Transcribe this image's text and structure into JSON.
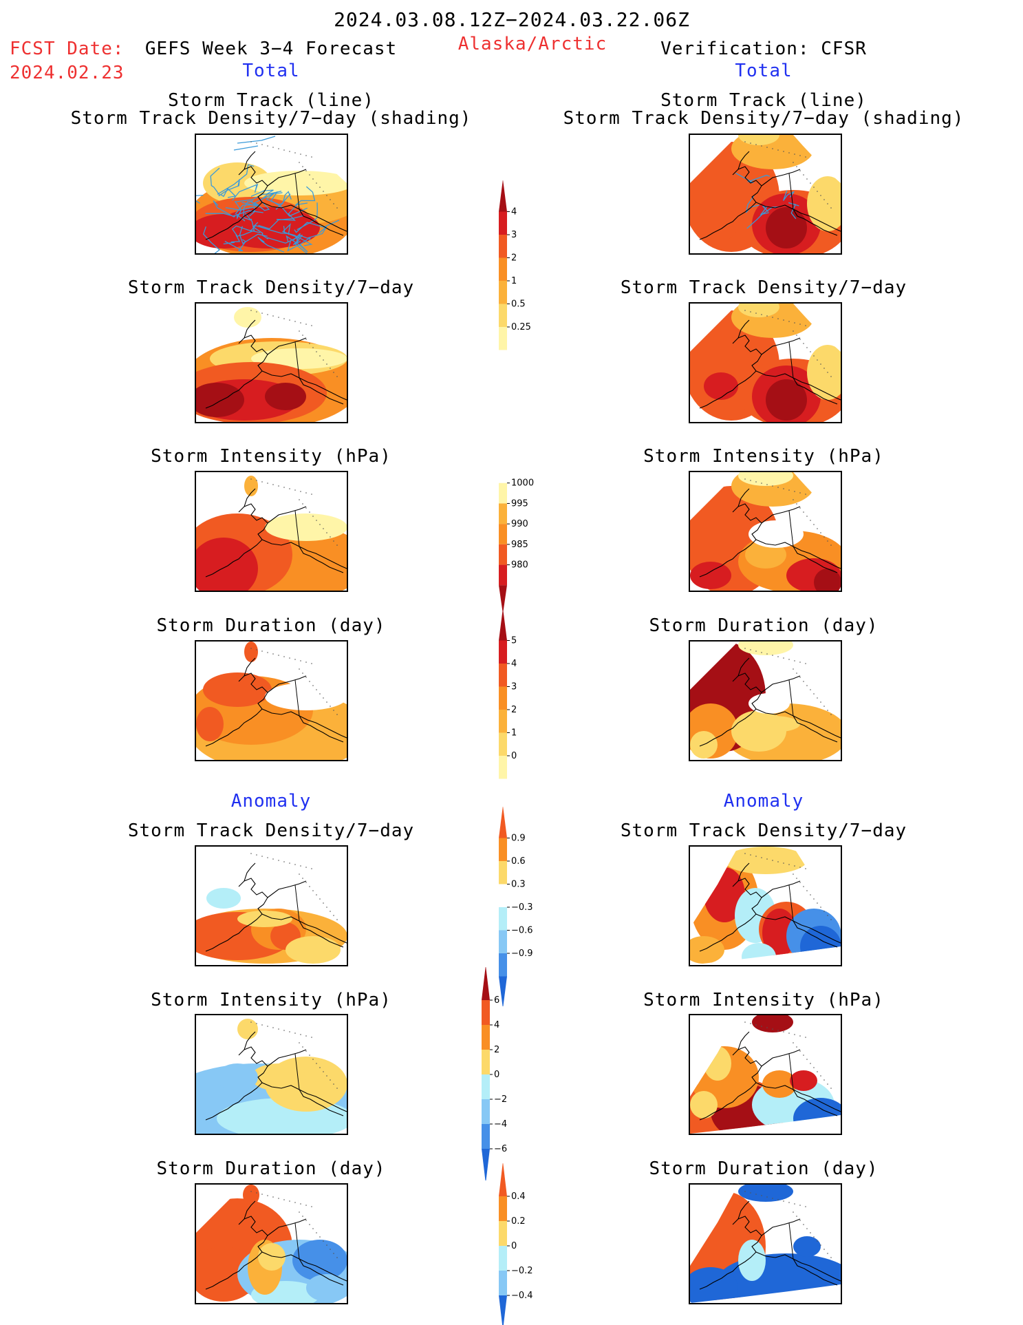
{
  "header": {
    "period": "2024.03.08.12Z−2024.03.22.06Z",
    "fcst_label": "FCST Date:",
    "fcst_date": "2024.02.23",
    "forecast_title": "GEFS Week 3−4 Forecast",
    "region": "Alaska/Arctic",
    "verification": "Verification: CFSR"
  },
  "sections": {
    "total_left": "Total",
    "total_right": "Total",
    "anomaly_left": "Anomaly",
    "anomaly_right": "Anomaly"
  },
  "titles": {
    "track_line": "Storm Track (line)",
    "track_shading": "Storm Track Density/7−day (shading)",
    "density": "Storm Track Density/7−day",
    "intensity": "Storm Intensity (hPa)",
    "duration": "Storm Duration (day)"
  },
  "colors": {
    "yellow_light": "#fff5a8",
    "yellow": "#fcd96a",
    "orange_light": "#fbb13a",
    "orange": "#f98f24",
    "orange_red": "#f15a22",
    "red": "#d71d20",
    "dark_red": "#a50f15",
    "light_blue": "#b4eef8",
    "sky_blue": "#87c8f5",
    "blue": "#4690e8",
    "deep_blue": "#1f67d7",
    "track_line": "#3a9ad9"
  },
  "chart_data": [
    {
      "type": "heatmap",
      "panel": "forecast-total-storm-track",
      "title": "Storm Track (line) / Storm Track Density/7−day (shading)"
    },
    {
      "type": "heatmap",
      "panel": "verification-total-storm-track",
      "title": "Storm Track (line) / Storm Track Density/7−day (shading)"
    },
    {
      "type": "heatmap",
      "panel": "forecast-total-density",
      "title": "Storm Track Density/7−day"
    },
    {
      "type": "heatmap",
      "panel": "verification-total-density",
      "title": "Storm Track Density/7−day"
    },
    {
      "type": "heatmap",
      "panel": "forecast-total-intensity",
      "title": "Storm Intensity (hPa)"
    },
    {
      "type": "heatmap",
      "panel": "verification-total-intensity",
      "title": "Storm Intensity (hPa)"
    },
    {
      "type": "heatmap",
      "panel": "forecast-total-duration",
      "title": "Storm Duration (day)"
    },
    {
      "type": "heatmap",
      "panel": "verification-total-duration",
      "title": "Storm Duration (day)"
    },
    {
      "type": "heatmap",
      "panel": "forecast-anomaly-density",
      "title": "Storm Track Density/7−day"
    },
    {
      "type": "heatmap",
      "panel": "verification-anomaly-density",
      "title": "Storm Track Density/7−day"
    },
    {
      "type": "heatmap",
      "panel": "forecast-anomaly-intensity",
      "title": "Storm Intensity (hPa)"
    },
    {
      "type": "heatmap",
      "panel": "verification-anomaly-intensity",
      "title": "Storm Intensity (hPa)"
    },
    {
      "type": "heatmap",
      "panel": "forecast-anomaly-duration",
      "title": "Storm Duration (day)"
    },
    {
      "type": "heatmap",
      "panel": "verification-anomaly-duration",
      "title": "Storm Duration (day)"
    }
  ],
  "colorbars": {
    "density_total": {
      "ticks": [
        "4",
        "3",
        "2",
        "1",
        "0.5",
        "0.25"
      ],
      "colors": [
        "#a50f15",
        "#d71d20",
        "#f15a22",
        "#f98f24",
        "#fbb13a",
        "#fcd96a",
        "#fff5a8",
        "#ffffff"
      ],
      "arrow_top": true,
      "arrow_bottom": false
    },
    "intensity_total": {
      "ticks": [
        "1000",
        "995",
        "990",
        "985",
        "980"
      ],
      "colors": [
        "#ffffff",
        "#fff5a8",
        "#fbb13a",
        "#f98f24",
        "#f15a22",
        "#d71d20",
        "#a50f15"
      ],
      "arrow_top": false,
      "arrow_bottom": true
    },
    "duration_total": {
      "ticks": [
        "5",
        "4",
        "3",
        "2",
        "1",
        "0"
      ],
      "colors": [
        "#a50f15",
        "#d71d20",
        "#f15a22",
        "#f98f24",
        "#fbb13a",
        "#fcd96a",
        "#fff5a8",
        "#ffffff"
      ],
      "arrow_top": true,
      "arrow_bottom": false
    },
    "density_anomaly": {
      "ticks": [
        "0.9",
        "0.6",
        "0.3",
        "−0.3",
        "−0.6",
        "−0.9"
      ],
      "colors": [
        "#f15a22",
        "#f98f24",
        "#fcd96a",
        "#ffffff",
        "#b4eef8",
        "#87c8f5",
        "#4690e8",
        "#1f67d7"
      ],
      "arrow_top": true,
      "arrow_bottom": true
    },
    "intensity_anomaly": {
      "ticks": [
        "6",
        "4",
        "2",
        "0",
        "−2",
        "−4",
        "−6"
      ],
      "colors": [
        "#a50f15",
        "#f15a22",
        "#f98f24",
        "#fcd96a",
        "#b4eef8",
        "#87c8f5",
        "#4690e8",
        "#1f67d7"
      ],
      "arrow_top": true,
      "arrow_bottom": true
    },
    "duration_anomaly": {
      "ticks": [
        "0.4",
        "0.2",
        "0",
        "−0.2",
        "−0.4"
      ],
      "colors": [
        "#f15a22",
        "#f98f24",
        "#fcd96a",
        "#b4eef8",
        "#87c8f5",
        "#1f67d7"
      ],
      "arrow_top": true,
      "arrow_bottom": true
    }
  }
}
